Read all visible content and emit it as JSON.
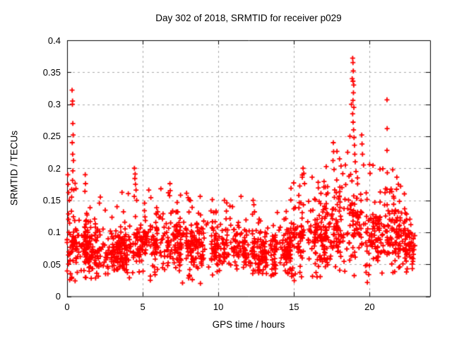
{
  "page": {
    "background": "#ffffff"
  },
  "chart_data": {
    "type": "scatter",
    "title": "Day 302 of 2018, SRMTID for receiver p029",
    "xlabel": "GPS time / hours",
    "ylabel": "SRMTID / TECUs",
    "xlim": [
      0,
      24
    ],
    "ylim": [
      0,
      0.4
    ],
    "xticks": [
      0,
      5,
      10,
      15,
      20
    ],
    "xtick_labels": [
      "0",
      "5",
      "10",
      "15",
      "20"
    ],
    "yticks": [
      0,
      0.05,
      0.1,
      0.15,
      0.2,
      0.25,
      0.3,
      0.35,
      0.4
    ],
    "ytick_labels": [
      "0",
      "0.05",
      "0.1",
      "0.15",
      "0.2",
      "0.25",
      "0.3",
      "0.35",
      "0.4"
    ],
    "grid": {
      "show": true,
      "color": "#a8a8a8",
      "dash": [
        3,
        4
      ]
    },
    "legend": {
      "show": false
    },
    "border_color": "#000000",
    "marker": {
      "shape": "plus",
      "color": "#ff0000",
      "size": 7,
      "stroke": 1.8
    },
    "series": [
      {
        "name": "SRMTID",
        "color": "#ff0000"
      }
    ],
    "x_data_range": [
      0,
      23.05
    ],
    "band_profile_hours": [
      [
        0,
        0.08,
        0.022,
        0.19
      ],
      [
        1,
        0.072,
        0.02,
        0.18
      ],
      [
        2,
        0.068,
        0.018,
        0.15
      ],
      [
        3,
        0.066,
        0.017,
        0.14
      ],
      [
        4,
        0.074,
        0.021,
        0.2
      ],
      [
        5,
        0.08,
        0.022,
        0.17
      ],
      [
        6,
        0.082,
        0.022,
        0.18
      ],
      [
        7,
        0.086,
        0.022,
        0.16
      ],
      [
        8,
        0.084,
        0.022,
        0.16
      ],
      [
        9,
        0.078,
        0.02,
        0.15
      ],
      [
        10,
        0.076,
        0.019,
        0.15
      ],
      [
        11,
        0.078,
        0.02,
        0.16
      ],
      [
        12,
        0.072,
        0.018,
        0.15
      ],
      [
        13,
        0.064,
        0.016,
        0.12
      ],
      [
        14,
        0.066,
        0.018,
        0.14
      ],
      [
        15,
        0.086,
        0.026,
        0.21
      ],
      [
        16,
        0.092,
        0.026,
        0.2
      ],
      [
        17,
        0.096,
        0.028,
        0.24
      ],
      [
        18,
        0.102,
        0.03,
        0.3
      ],
      [
        19,
        0.112,
        0.03,
        0.26
      ],
      [
        20,
        0.1,
        0.028,
        0.21
      ],
      [
        21,
        0.104,
        0.028,
        0.22
      ],
      [
        22,
        0.094,
        0.026,
        0.18
      ],
      [
        23,
        0.062,
        0.016,
        0.1
      ]
    ],
    "spike_points": [
      [
        0.05,
        0.19
      ],
      [
        0.07,
        0.175
      ],
      [
        0.1,
        0.162
      ],
      [
        0.15,
        0.15
      ],
      [
        0.33,
        0.322
      ],
      [
        0.36,
        0.305
      ],
      [
        0.35,
        0.3
      ],
      [
        0.38,
        0.27
      ],
      [
        0.4,
        0.252
      ],
      [
        0.34,
        0.24
      ],
      [
        0.37,
        0.222
      ],
      [
        0.42,
        0.212
      ],
      [
        0.38,
        0.196
      ],
      [
        0.36,
        0.181
      ],
      [
        0.44,
        0.166
      ],
      [
        0.3,
        0.155
      ],
      [
        1.2,
        0.19
      ],
      [
        1.22,
        0.176
      ],
      [
        1.18,
        0.164
      ],
      [
        2.2,
        0.155
      ],
      [
        3.3,
        0.14
      ],
      [
        4.45,
        0.2
      ],
      [
        4.5,
        0.191
      ],
      [
        4.48,
        0.184
      ],
      [
        4.52,
        0.175
      ],
      [
        4.56,
        0.166
      ],
      [
        4.44,
        0.156
      ],
      [
        4.6,
        0.15
      ],
      [
        5.4,
        0.166
      ],
      [
        6.2,
        0.168
      ],
      [
        6.8,
        0.176
      ],
      [
        6.82,
        0.165
      ],
      [
        6.78,
        0.157
      ],
      [
        7.5,
        0.158
      ],
      [
        7.9,
        0.161
      ],
      [
        8.0,
        0.154
      ],
      [
        8.8,
        0.156
      ],
      [
        9.6,
        0.151
      ],
      [
        10.4,
        0.15
      ],
      [
        11.5,
        0.156
      ],
      [
        12.3,
        0.15
      ],
      [
        12.35,
        0.143
      ],
      [
        13.9,
        0.131
      ],
      [
        15.55,
        0.186
      ],
      [
        15.6,
        0.2
      ],
      [
        15.65,
        0.192
      ],
      [
        15.7,
        0.176
      ],
      [
        16.2,
        0.186
      ],
      [
        16.6,
        0.178
      ],
      [
        17.58,
        0.212
      ],
      [
        17.6,
        0.24
      ],
      [
        17.62,
        0.226
      ],
      [
        17.65,
        0.198
      ],
      [
        18.4,
        0.205
      ],
      [
        18.55,
        0.225
      ],
      [
        18.7,
        0.25
      ],
      [
        18.8,
        0.3
      ],
      [
        18.85,
        0.34
      ],
      [
        18.88,
        0.372
      ],
      [
        18.9,
        0.365
      ],
      [
        18.92,
        0.352
      ],
      [
        18.9,
        0.336
      ],
      [
        18.95,
        0.33
      ],
      [
        18.93,
        0.318
      ],
      [
        18.9,
        0.306
      ],
      [
        18.96,
        0.295
      ],
      [
        18.88,
        0.285
      ],
      [
        18.91,
        0.272
      ],
      [
        18.94,
        0.26
      ],
      [
        18.97,
        0.248
      ],
      [
        19.0,
        0.236
      ],
      [
        19.02,
        0.222
      ],
      [
        19.05,
        0.21
      ],
      [
        19.1,
        0.195
      ],
      [
        19.2,
        0.185
      ],
      [
        19.48,
        0.252
      ],
      [
        19.5,
        0.238
      ],
      [
        19.53,
        0.222
      ],
      [
        19.6,
        0.205
      ],
      [
        20.0,
        0.206
      ],
      [
        20.03,
        0.192
      ],
      [
        21.15,
        0.307
      ],
      [
        21.16,
        0.262
      ],
      [
        21.15,
        0.228
      ],
      [
        21.17,
        0.193
      ],
      [
        21.15,
        0.167
      ],
      [
        21.16,
        0.143
      ],
      [
        21.8,
        0.186
      ],
      [
        22.05,
        0.172
      ],
      [
        22.3,
        0.16
      ]
    ],
    "synth": {
      "seed": 2018302,
      "clusters": 340,
      "cluster_pts_min": 3,
      "cluster_pts_max": 7,
      "cluster_halfwidth": 0.12,
      "tail_prob": 0.055,
      "low_outlier_prob": 0.012
    }
  }
}
